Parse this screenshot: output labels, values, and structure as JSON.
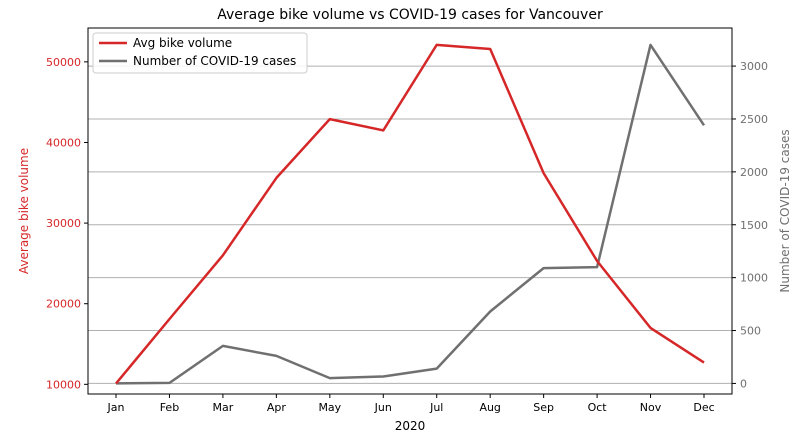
{
  "chart_data": {
    "type": "line",
    "title": "Average bike volume vs COVID-19 cases for Vancouver",
    "xlabel": "2020",
    "categories": [
      "Jan",
      "Feb",
      "Mar",
      "Apr",
      "May",
      "Jun",
      "Jul",
      "Aug",
      "Sep",
      "Oct",
      "Nov",
      "Dec"
    ],
    "y_left": {
      "label": "Average bike volume",
      "ticks": [
        10000,
        20000,
        30000,
        40000,
        50000
      ],
      "ylim": [
        8800,
        54200
      ],
      "color": "#d62728"
    },
    "y_right": {
      "label": "Number of COVID-19 cases",
      "ticks": [
        0,
        500,
        1000,
        1500,
        2000,
        2500,
        3000
      ],
      "ylim": [
        -100,
        3360
      ],
      "color": "#707070"
    },
    "grid": "horizontal (right axis)",
    "legend_placement": "top-left",
    "series": [
      {
        "name": "Avg bike volume",
        "axis": "left",
        "color": "#d62728",
        "values": [
          10100,
          18100,
          26000,
          35600,
          42900,
          41500,
          52100,
          51600,
          36200,
          25300,
          17000,
          12700
        ]
      },
      {
        "name": "Number of COVID-19 cases",
        "axis": "right",
        "color": "#707070",
        "values": [
          0,
          5,
          355,
          260,
          50,
          65,
          140,
          680,
          1090,
          1100,
          3200,
          2440
        ]
      }
    ]
  }
}
